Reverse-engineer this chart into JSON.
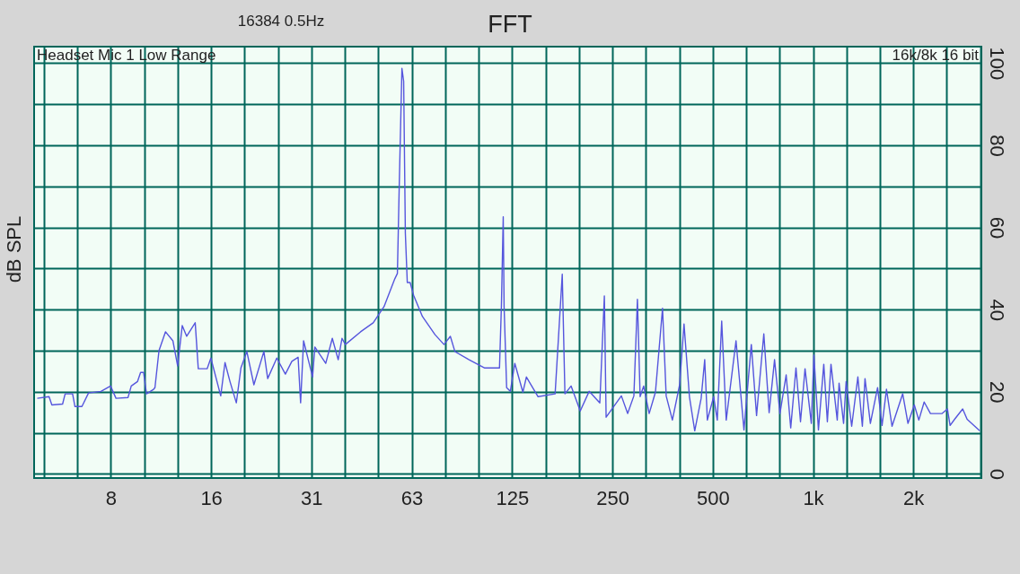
{
  "chart_data": {
    "type": "line",
    "title": "FFT",
    "ylabel": "dB SPL",
    "annotations": [
      "16384  0.5Hz",
      "Headset Mic 1 Low Range",
      "16k/8k 16 bit"
    ],
    "log": "x",
    "grid": true,
    "marker": "none",
    "line_style": "solid",
    "xlim": [
      4.6,
      3200
    ],
    "ylim": [
      -1,
      104
    ],
    "xticks": [
      {
        "value": 4.92,
        "label": null
      },
      {
        "value": 6.2,
        "label": null
      },
      {
        "value": 7.8125,
        "label": "8"
      },
      {
        "value": 9.84,
        "label": null
      },
      {
        "value": 12.4,
        "label": null
      },
      {
        "value": 15.625,
        "label": "16"
      },
      {
        "value": 19.7,
        "label": null
      },
      {
        "value": 24.8,
        "label": null
      },
      {
        "value": 31.25,
        "label": "31"
      },
      {
        "value": 39.4,
        "label": null
      },
      {
        "value": 49.6,
        "label": null
      },
      {
        "value": 62.5,
        "label": "63"
      },
      {
        "value": 78.7,
        "label": null
      },
      {
        "value": 99.2,
        "label": null
      },
      125,
      {
        "value": 157.5,
        "label": null
      },
      {
        "value": 198.4,
        "label": null
      },
      250,
      {
        "value": 315,
        "label": null
      },
      {
        "value": 396.9,
        "label": null
      },
      500,
      {
        "value": 630,
        "label": null
      },
      {
        "value": 793.7,
        "label": null
      },
      {
        "value": 1000,
        "label": "1k"
      },
      {
        "value": 1260,
        "label": null
      },
      {
        "value": 1587,
        "label": null
      },
      {
        "value": 2000,
        "label": "2k"
      },
      {
        "value": 2520,
        "label": null
      },
      {
        "value": 3175,
        "label": null
      }
    ],
    "yticks": [
      0,
      {
        "value": 10,
        "label": null
      },
      20,
      {
        "value": 30,
        "label": null
      },
      40,
      {
        "value": 50,
        "label": null
      },
      60,
      {
        "value": 70,
        "label": null
      },
      80,
      {
        "value": 90,
        "label": null
      },
      100
    ],
    "series": [
      {
        "color": "#5555dd",
        "x": [
          4.7,
          5.1,
          5.2,
          5.6,
          5.7,
          6.0,
          6.1,
          6.4,
          6.7,
          7.3,
          7.8,
          8.1,
          8.8,
          9.0,
          9.4,
          9.6,
          9.8,
          10.0,
          10.5,
          10.6,
          10.9,
          11.4,
          12.0,
          12.4,
          12.8,
          13.2,
          14.0,
          14.3,
          15.2,
          15.6,
          16.7,
          17.2,
          17.8,
          18.6,
          19.2,
          20.0,
          21.0,
          22.5,
          23.1,
          24.6,
          26.1,
          27.3,
          28.5,
          29.0,
          29.6,
          31.5,
          32.0,
          34.5,
          36.1,
          37.6,
          38.6,
          39.5,
          43.9,
          47.9,
          51.6,
          55.6,
          56.6,
          57.3,
          58.4,
          59.1,
          59.8,
          60.6,
          61.8,
          63.3,
          67.3,
          73.4,
          78.1,
          81.6,
          84.2,
          92.9,
          103.2,
          114.6,
          116.1,
          117.6,
          118.3,
          120.4,
          123.5,
          127.4,
          134.7,
          138.0,
          149.6,
          168.3,
          176.8,
          180.1,
          188.0,
          200.2,
          212.9,
          229.2,
          236.5,
          239.4,
          266,
          277.8,
          290,
          297.2,
          302.8,
          310.3,
          322.3,
          336.6,
          353.5,
          362.5,
          378.4,
          397.8,
          410.1,
          425.7,
          441.6,
          461.6,
          473.1,
          481.8,
          503.3,
          516,
          532,
          548.9,
          587.3,
          620.5,
          652.8,
          676.9,
          711.7,
          738.3,
          766.5,
          795.6,
          830.5,
          857.1,
          888.8,
          917,
          946.2,
          988.2,
          1006,
          1038,
          1077,
          1104,
          1132,
          1182,
          1197,
          1235,
          1257,
          1306,
          1363,
          1406,
          1432,
          1486,
          1562,
          1611,
          1661,
          1726,
          1858,
          1927,
          2013,
          2077,
          2155,
          2251,
          2439,
          2531,
          2578,
          2659,
          2812,
          2900,
          3163
        ],
        "values": [
          18.4,
          18.8,
          16.8,
          17,
          19.5,
          19.5,
          16.4,
          16.4,
          19.7,
          20.1,
          21.4,
          18.4,
          18.6,
          21.4,
          22.5,
          24.7,
          24.7,
          19.5,
          20.6,
          21,
          30,
          34.6,
          32.4,
          26.3,
          36.1,
          33.5,
          36.8,
          25.6,
          25.6,
          28.2,
          19,
          27.1,
          22.5,
          17.3,
          25.8,
          29.8,
          21.7,
          29.8,
          23.2,
          28.2,
          24.3,
          27.4,
          28.4,
          17.3,
          32.4,
          23.6,
          30.9,
          26.9,
          33,
          27.8,
          33,
          31.5,
          34.6,
          36.8,
          40.7,
          47.5,
          48.8,
          69.4,
          98.7,
          95.6,
          58.6,
          46.6,
          46.6,
          43.5,
          38.3,
          33.9,
          31.5,
          33.5,
          29.8,
          27.8,
          25.8,
          25.8,
          40.7,
          62.6,
          40.7,
          21,
          20.1,
          26.9,
          19.9,
          23.6,
          18.8,
          19.5,
          48.6,
          19.5,
          21.4,
          15.3,
          20.1,
          17.3,
          43.3,
          13.8,
          19,
          14.7,
          19,
          42.5,
          18.8,
          21.4,
          14.7,
          19.9,
          40.3,
          19,
          13.1,
          21.7,
          36.5,
          18.8,
          10.5,
          18.4,
          27.8,
          13.1,
          18.8,
          13.1,
          37.2,
          13.1,
          32.4,
          10.7,
          31.5,
          14.2,
          34.1,
          14.9,
          27.8,
          14.7,
          24.1,
          11.2,
          25.8,
          12.7,
          25.6,
          12.3,
          28.9,
          10.7,
          26.7,
          12.7,
          26.7,
          13.1,
          22.1,
          12.3,
          22.5,
          11.6,
          23.6,
          11.6,
          23.2,
          12.3,
          21,
          11.8,
          20.6,
          11.6,
          19.5,
          12.3,
          16.8,
          13.1,
          17.5,
          14.7,
          14.7,
          15.8,
          11.8,
          13.3,
          15.8,
          13.3,
          10.5
        ]
      }
    ]
  }
}
